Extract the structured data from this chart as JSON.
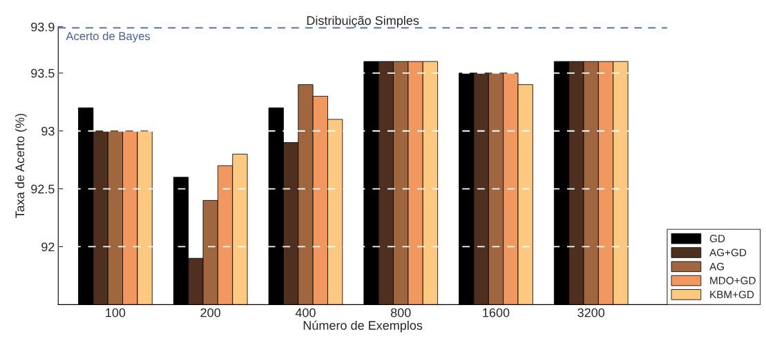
{
  "chart_data": {
    "type": "bar",
    "title": "Distribuição Simples",
    "xlabel": "Número de Exemplos",
    "ylabel": "Taxa de Acerto (%)",
    "categories": [
      "100",
      "200",
      "400",
      "800",
      "1600",
      "3200"
    ],
    "series": [
      {
        "name": "GD",
        "color": "#000000",
        "values": [
          93.2,
          92.6,
          93.2,
          93.6,
          93.5,
          93.6
        ]
      },
      {
        "name": "AG+GD",
        "color": "#4f3020",
        "values": [
          93.0,
          91.9,
          92.9,
          93.6,
          93.5,
          93.6
        ]
      },
      {
        "name": "AG",
        "color": "#a06640",
        "values": [
          93.0,
          92.4,
          93.4,
          93.6,
          93.5,
          93.6
        ]
      },
      {
        "name": "MDO+GD",
        "color": "#f09860",
        "values": [
          93.0,
          92.7,
          93.3,
          93.6,
          93.5,
          93.6
        ]
      },
      {
        "name": "KBM+GD",
        "color": "#fdc880",
        "values": [
          93.0,
          92.8,
          93.1,
          93.6,
          93.4,
          93.6
        ]
      }
    ],
    "ylim": [
      91.5,
      93.9
    ],
    "yticks": [
      92,
      92.5,
      93,
      93.5,
      93.9
    ],
    "grid": "y",
    "legend": "bottom right",
    "ref_lines": [
      {
        "axis": "y",
        "value": 93.89,
        "label": "Acerto de Bayes",
        "color": "#4a5f94",
        "line_style": "dashed"
      }
    ]
  }
}
